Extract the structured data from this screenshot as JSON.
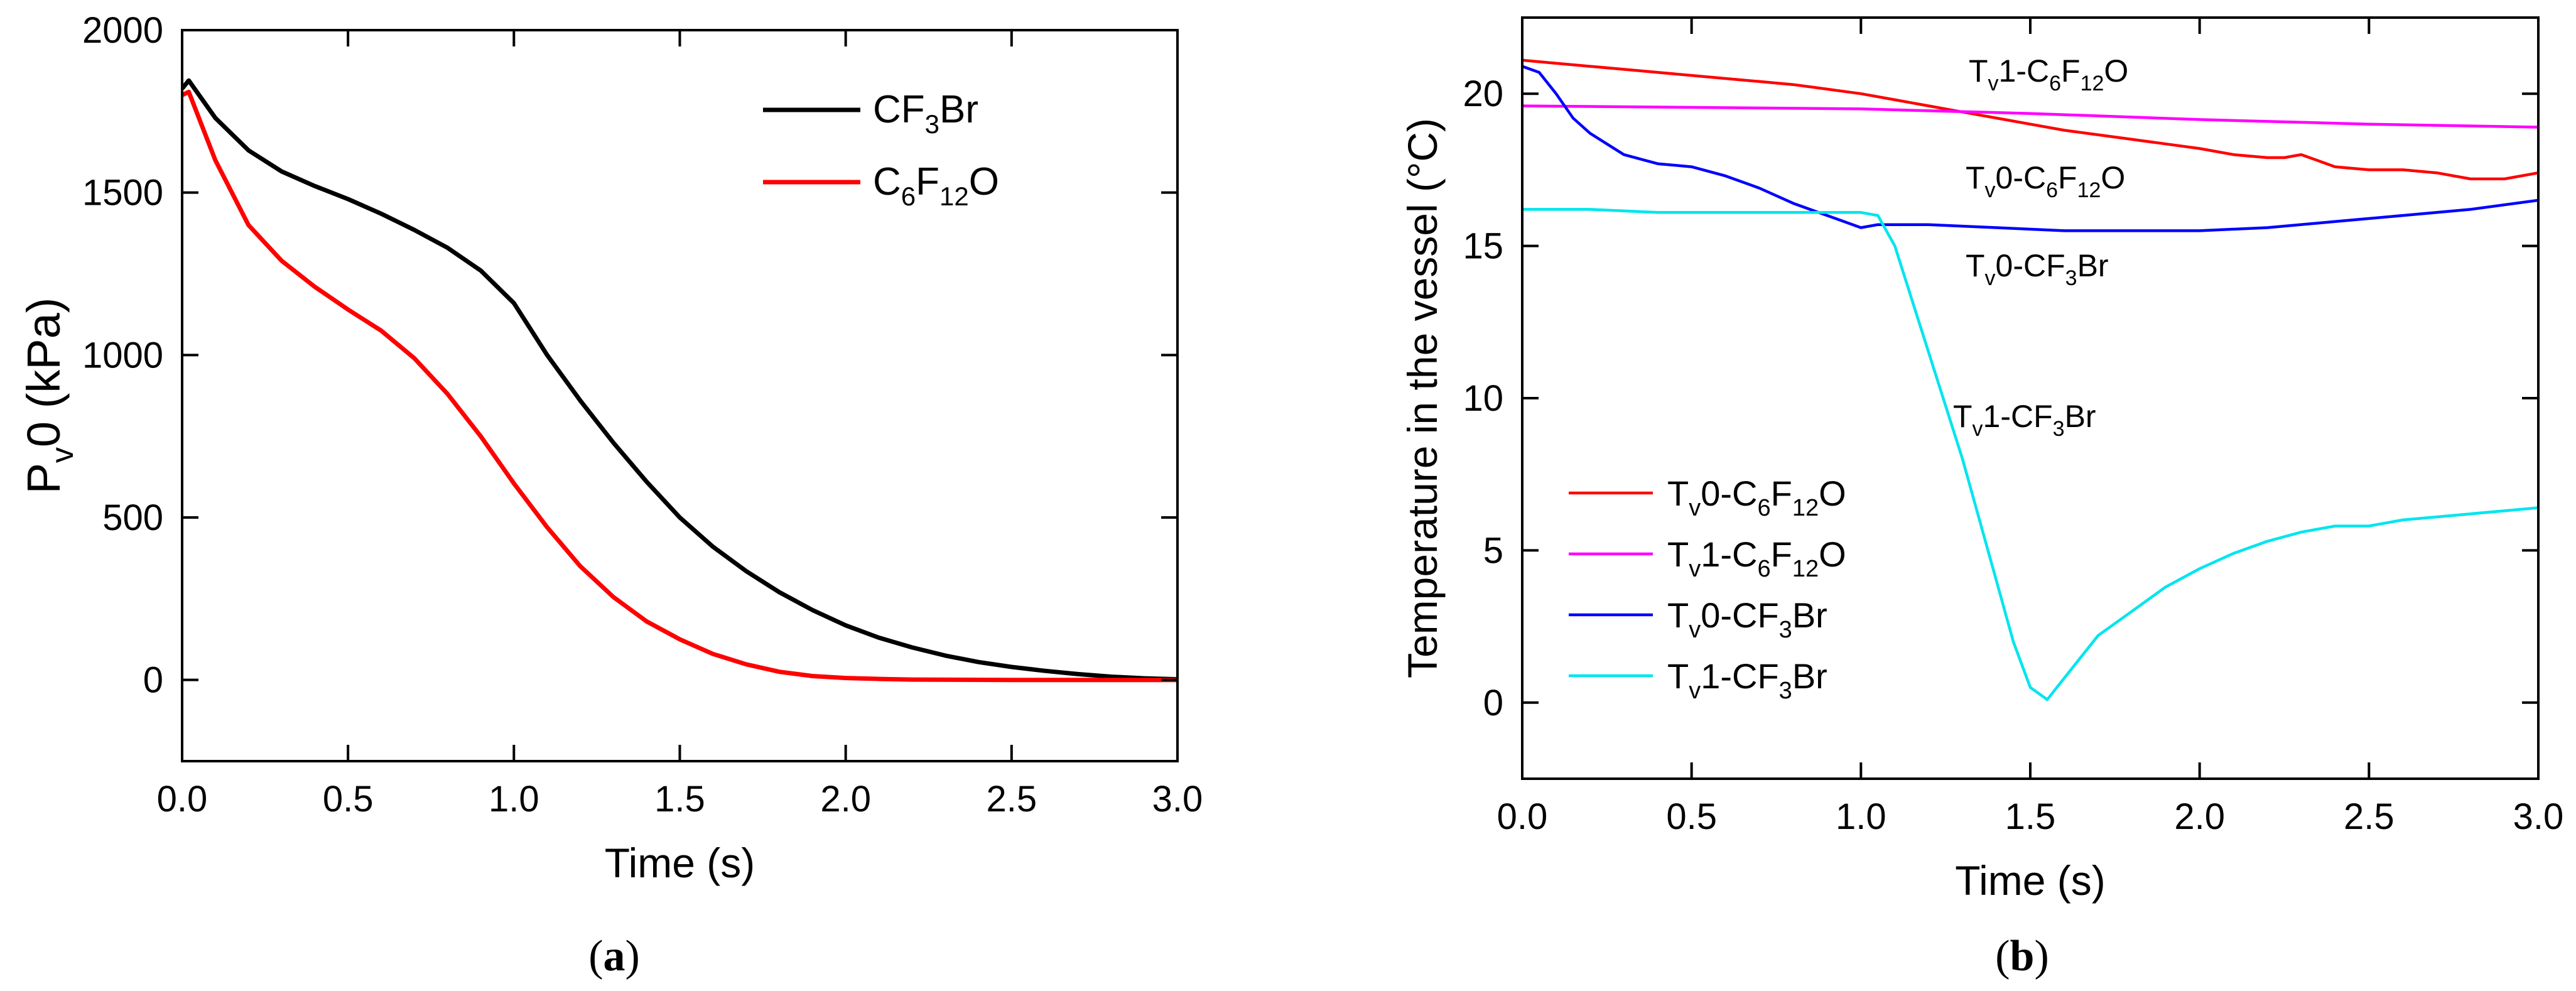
{
  "chart_data": [
    {
      "type": "line",
      "panel": "a",
      "caption": {
        "open": "(",
        "letter": "a",
        "close": ")"
      },
      "xlabel": "Time (s)",
      "ylabel": {
        "main": "P",
        "sub": "v",
        "rest": "0 (kPa)"
      },
      "xlim": [
        0,
        3
      ],
      "ylim": [
        -250,
        2000
      ],
      "xticks": [
        0,
        0.5,
        1,
        1.5,
        2,
        2.5,
        3
      ],
      "xtick_labels": [
        "0.0",
        "0.5",
        "1.0",
        "1.5",
        "2.0",
        "2.5",
        "3.0"
      ],
      "yticks": [
        0,
        500,
        1000,
        1500,
        2000
      ],
      "ytick_labels": [
        "0",
        "500",
        "1000",
        "1500",
        "2000"
      ],
      "legend_position": "top-right",
      "series": [
        {
          "key": "cf3br",
          "name": "CF3Br",
          "label_parts": [
            [
              "CF",
              ""
            ],
            [
              "3",
              "sub"
            ],
            [
              "Br",
              ""
            ]
          ],
          "color": "#000000",
          "x": [
            0,
            0.02,
            0.1,
            0.2,
            0.3,
            0.4,
            0.5,
            0.6,
            0.7,
            0.8,
            0.9,
            1.0,
            1.1,
            1.2,
            1.3,
            1.4,
            1.5,
            1.6,
            1.7,
            1.8,
            1.9,
            2.0,
            2.1,
            2.2,
            2.3,
            2.4,
            2.5,
            2.6,
            2.7,
            2.8,
            2.9,
            3.0
          ],
          "y": [
            1820,
            1845,
            1730,
            1630,
            1565,
            1520,
            1480,
            1435,
            1385,
            1330,
            1260,
            1160,
            1000,
            860,
            730,
            610,
            500,
            410,
            335,
            270,
            215,
            168,
            130,
            100,
            75,
            55,
            40,
            28,
            18,
            10,
            5,
            2
          ]
        },
        {
          "key": "c6f12o",
          "name": "C6F12O",
          "label_parts": [
            [
              "C",
              ""
            ],
            [
              "6",
              "sub"
            ],
            [
              "F",
              ""
            ],
            [
              "12",
              "sub"
            ],
            [
              "O",
              ""
            ]
          ],
          "color": "#ff0000",
          "x": [
            0,
            0.02,
            0.1,
            0.2,
            0.3,
            0.4,
            0.5,
            0.6,
            0.7,
            0.8,
            0.9,
            1.0,
            1.1,
            1.2,
            1.3,
            1.4,
            1.5,
            1.6,
            1.7,
            1.8,
            1.9,
            2.0,
            2.1,
            2.2,
            2.5,
            3.0
          ],
          "y": [
            1800,
            1810,
            1600,
            1400,
            1290,
            1210,
            1140,
            1075,
            990,
            880,
            750,
            605,
            470,
            350,
            255,
            180,
            125,
            80,
            48,
            25,
            12,
            6,
            3,
            1,
            0,
            0
          ]
        }
      ]
    },
    {
      "type": "line",
      "panel": "b",
      "caption": {
        "open": "(",
        "letter": "b",
        "close": ")"
      },
      "xlabel": "Time (s)",
      "ylabel": "Temperature in the vessel (°C)",
      "xlim": [
        0,
        3
      ],
      "ylim": [
        -2.5,
        22.5
      ],
      "xticks": [
        0,
        0.5,
        1,
        1.5,
        2,
        2.5,
        3
      ],
      "xtick_labels": [
        "0.0",
        "0.5",
        "1.0",
        "1.5",
        "2.0",
        "2.5",
        "3.0"
      ],
      "yticks": [
        0,
        5,
        10,
        15,
        20
      ],
      "ytick_labels": [
        "0",
        "5",
        "10",
        "15",
        "20"
      ],
      "legend_position": "bottom-left",
      "series": [
        {
          "key": "tv0_c6f12o",
          "name": "Tv0-C6F12O",
          "label_parts": [
            [
              "T",
              ""
            ],
            [
              "v",
              "sub"
            ],
            [
              "0-C",
              ""
            ],
            [
              "6",
              "sub"
            ],
            [
              "F",
              ""
            ],
            [
              "12",
              "sub"
            ],
            [
              "O",
              ""
            ]
          ],
          "color": "#ff0000",
          "x": [
            0,
            0.1,
            0.2,
            0.3,
            0.4,
            0.5,
            0.6,
            0.7,
            0.8,
            0.9,
            1.0,
            1.1,
            1.2,
            1.3,
            1.4,
            1.5,
            1.6,
            1.7,
            1.8,
            1.9,
            2.0,
            2.1,
            2.2,
            2.25,
            2.3,
            2.35,
            2.4,
            2.5,
            2.6,
            2.7,
            2.8,
            2.9,
            3.0
          ],
          "y": [
            21.1,
            21.0,
            20.9,
            20.8,
            20.7,
            20.6,
            20.5,
            20.4,
            20.3,
            20.15,
            20.0,
            19.8,
            19.6,
            19.4,
            19.2,
            19.0,
            18.8,
            18.65,
            18.5,
            18.35,
            18.2,
            18.0,
            17.9,
            17.9,
            18.0,
            17.8,
            17.6,
            17.5,
            17.5,
            17.4,
            17.2,
            17.2,
            17.4
          ]
        },
        {
          "key": "tv1_c6f12o",
          "name": "Tv1-C6F12O",
          "label_parts": [
            [
              "T",
              ""
            ],
            [
              "v",
              "sub"
            ],
            [
              "1-C",
              ""
            ],
            [
              "6",
              "sub"
            ],
            [
              "F",
              ""
            ],
            [
              "12",
              "sub"
            ],
            [
              "O",
              ""
            ]
          ],
          "color": "#ff00ff",
          "x": [
            0,
            0.5,
            1.0,
            1.5,
            2.0,
            2.5,
            3.0
          ],
          "y": [
            19.6,
            19.55,
            19.5,
            19.35,
            19.15,
            19.0,
            18.9
          ]
        },
        {
          "key": "tv0_cf3br",
          "name": "Tv0-CF3Br",
          "label_parts": [
            [
              "T",
              ""
            ],
            [
              "v",
              "sub"
            ],
            [
              "0-CF",
              ""
            ],
            [
              "3",
              "sub"
            ],
            [
              "Br",
              ""
            ]
          ],
          "color": "#0000ff",
          "x": [
            0,
            0.05,
            0.1,
            0.15,
            0.2,
            0.3,
            0.4,
            0.5,
            0.6,
            0.7,
            0.8,
            0.9,
            1.0,
            1.05,
            1.2,
            1.4,
            1.6,
            1.8,
            2.0,
            2.2,
            2.4,
            2.6,
            2.8,
            3.0
          ],
          "y": [
            20.9,
            20.7,
            20.0,
            19.2,
            18.7,
            18.0,
            17.7,
            17.6,
            17.3,
            16.9,
            16.4,
            16.0,
            15.6,
            15.7,
            15.7,
            15.6,
            15.5,
            15.5,
            15.5,
            15.6,
            15.8,
            16.0,
            16.2,
            16.5
          ]
        },
        {
          "key": "tv1_cf3br",
          "name": "Tv1-CF3Br",
          "label_parts": [
            [
              "T",
              ""
            ],
            [
              "v",
              "sub"
            ],
            [
              "1-CF",
              ""
            ],
            [
              "3",
              "sub"
            ],
            [
              "Br",
              ""
            ]
          ],
          "color": "#00e5ee",
          "x": [
            0,
            0.2,
            0.4,
            0.6,
            0.8,
            1.0,
            1.05,
            1.1,
            1.2,
            1.3,
            1.4,
            1.45,
            1.5,
            1.55,
            1.6,
            1.7,
            1.8,
            1.9,
            2.0,
            2.1,
            2.2,
            2.3,
            2.4,
            2.5,
            2.6,
            2.7,
            2.8,
            2.9,
            3.0
          ],
          "y": [
            16.2,
            16.2,
            16.1,
            16.1,
            16.1,
            16.1,
            16.0,
            15.0,
            11.5,
            8.0,
            4.0,
            2.0,
            0.5,
            0.1,
            0.8,
            2.2,
            3.0,
            3.8,
            4.4,
            4.9,
            5.3,
            5.6,
            5.8,
            5.8,
            6.0,
            6.1,
            6.2,
            6.3,
            6.4
          ]
        }
      ]
    }
  ]
}
